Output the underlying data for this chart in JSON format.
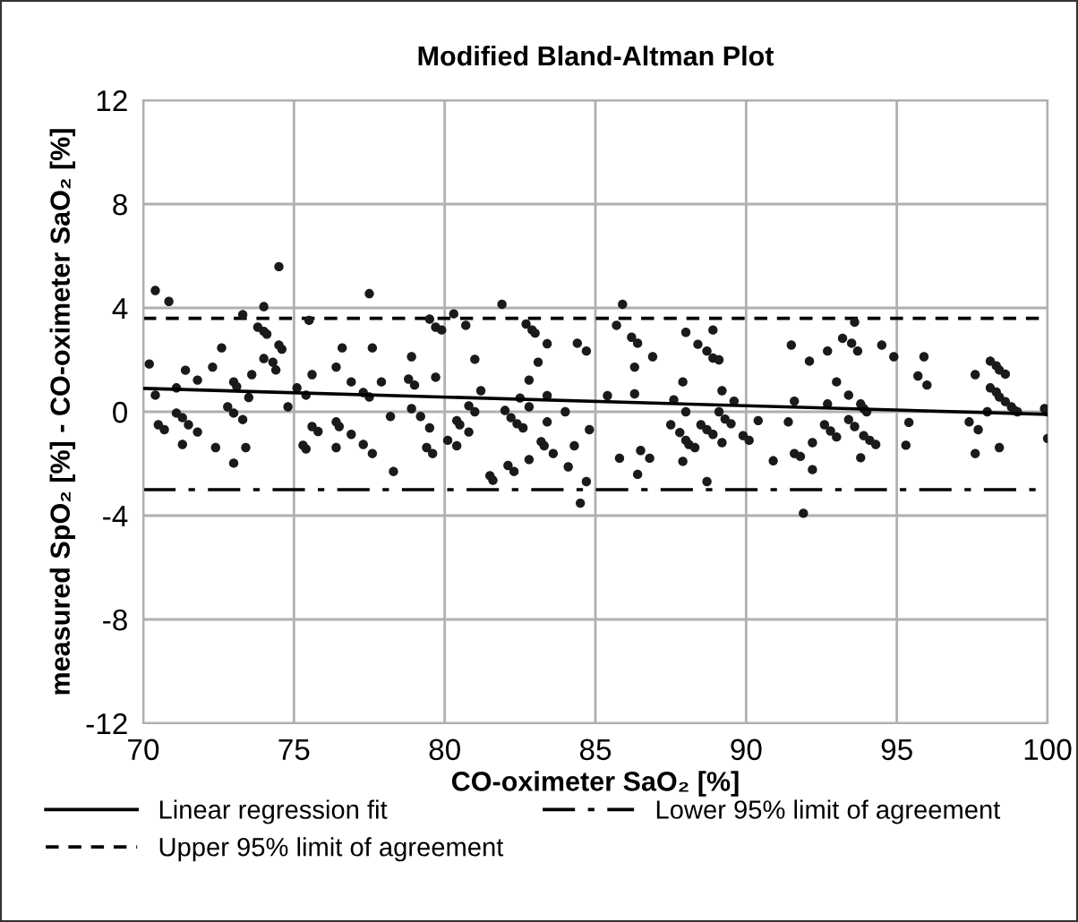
{
  "chart_data": {
    "type": "scatter",
    "title": "Modified Bland-Altman Plot",
    "xlabel": "CO-oximeter SaO₂ [%]",
    "ylabel": "measured SpO₂ [%] - CO-oximeter SaO₂ [%]",
    "xlim": [
      70,
      100
    ],
    "xticks": [
      70,
      75,
      80,
      85,
      90,
      95,
      100
    ],
    "ylim": [
      -12,
      12
    ],
    "yticks": [
      -12,
      -8,
      -4,
      0,
      4,
      8,
      12
    ],
    "grid": true,
    "legend": "bottom",
    "series": [
      {
        "marker": "circle",
        "color": "#1a1a1a",
        "x": [
          70.4,
          70.85,
          74.5,
          70.2,
          70.4,
          70.5,
          70.7,
          71.1,
          71.4,
          71.8,
          71.1,
          71.3,
          71.5,
          71.8,
          71.3,
          72.3,
          72.6,
          72.4,
          73.0,
          73.1,
          72.8,
          73.0,
          73.3,
          73.0,
          73.3,
          73.4,
          73.5,
          73.6,
          74.0,
          73.8,
          74.0,
          74.1,
          74.0,
          74.3,
          74.4,
          74.5,
          74.6,
          74.8,
          75.1,
          75.4,
          75.5,
          75.6,
          75.3,
          75.4,
          75.6,
          75.8,
          76.4,
          76.6,
          76.4,
          76.5,
          76.4,
          76.9,
          76.9,
          77.3,
          77.5,
          77.3,
          77.6,
          77.5,
          77.6,
          77.9,
          78.2,
          78.3,
          78.9,
          78.8,
          79.0,
          78.9,
          79.2,
          79.5,
          79.7,
          79.4,
          79.6,
          79.5,
          79.7,
          79.9,
          80.1,
          80.3,
          80.7,
          81.9,
          81.0,
          81.2,
          80.8,
          81.0,
          80.4,
          80.5,
          80.8,
          80.4,
          81.5,
          81.6,
          82.1,
          82.3,
          82.8,
          82.7,
          82.9,
          83.0,
          83.4,
          83.1,
          82.8,
          82.5,
          82.8,
          83.4,
          82.0,
          82.2,
          82.4,
          82.6,
          83.4,
          84.0,
          83.2,
          83.3,
          83.6,
          84.3,
          84.1,
          84.4,
          84.7,
          84.8,
          84.7,
          84.5,
          85.4,
          85.9,
          85.7,
          86.2,
          86.4,
          86.9,
          86.3,
          86.3,
          85.8,
          86.5,
          86.8,
          86.4,
          88.0,
          88.9,
          88.4,
          88.7,
          88.9,
          89.1,
          87.9,
          87.6,
          88.0,
          87.5,
          87.8,
          88.0,
          88.1,
          88.3,
          87.9,
          88.5,
          88.7,
          88.9,
          89.2,
          89.6,
          89.1,
          89.3,
          89.5,
          89.2,
          88.7,
          89.9,
          90.1,
          90.4,
          90.9,
          91.5,
          91.6,
          91.4,
          91.6,
          91.8,
          91.9,
          92.1,
          92.2,
          92.2,
          92.7,
          92.7,
          92.6,
          92.8,
          93.0,
          93.0,
          93.2,
          93.5,
          93.6,
          93.7,
          93.4,
          93.8,
          93.9,
          94.0,
          93.4,
          93.6,
          93.9,
          94.1,
          94.3,
          93.8,
          94.5,
          94.9,
          95.4,
          95.3,
          95.9,
          95.7,
          96.0,
          97.6,
          97.4,
          97.7,
          97.6,
          98.4,
          98.0,
          98.1,
          98.3,
          98.4,
          98.6,
          98.1,
          98.3,
          98.4,
          98.6,
          98.8,
          98.9,
          99.0,
          99.9,
          100.0,
          100.0
        ],
        "values": [
          4.67,
          4.25,
          5.59,
          1.84,
          0.64,
          -0.5,
          -0.69,
          0.92,
          1.6,
          1.22,
          -0.05,
          -0.23,
          -0.5,
          -0.78,
          -1.26,
          1.72,
          2.46,
          -1.38,
          1.15,
          0.97,
          0.19,
          -0.05,
          -0.3,
          -1.98,
          3.74,
          -1.38,
          0.55,
          1.43,
          4.05,
          3.26,
          3.1,
          2.99,
          2.05,
          1.91,
          1.61,
          2.57,
          2.41,
          0.19,
          0.92,
          0.64,
          3.52,
          1.43,
          -1.29,
          -1.43,
          -0.57,
          -0.76,
          1.72,
          2.46,
          -0.39,
          -0.57,
          -1.38,
          -0.87,
          1.15,
          0.74,
          0.57,
          -1.26,
          -1.61,
          4.55,
          2.46,
          1.15,
          -0.18,
          -2.3,
          2.12,
          1.26,
          1.03,
          0.12,
          -0.18,
          -0.62,
          1.33,
          -1.38,
          -1.61,
          3.57,
          3.26,
          3.15,
          -1.1,
          3.77,
          3.33,
          4.14,
          2.02,
          0.81,
          0.23,
          0.0,
          -0.34,
          -0.5,
          -0.78,
          -1.31,
          -2.46,
          -2.64,
          -2.07,
          -2.3,
          -1.84,
          3.38,
          3.15,
          3.03,
          2.62,
          1.91,
          1.22,
          0.53,
          0.19,
          0.62,
          0.05,
          -0.23,
          -0.46,
          -0.62,
          -0.39,
          0.0,
          -1.15,
          -1.31,
          -1.61,
          -1.31,
          -2.12,
          2.64,
          2.34,
          -0.69,
          -2.69,
          -3.52,
          0.62,
          4.14,
          3.33,
          2.87,
          2.64,
          2.12,
          1.72,
          0.69,
          -1.79,
          -1.49,
          -1.79,
          -2.41,
          3.06,
          3.15,
          2.6,
          2.34,
          2.07,
          2.0,
          1.15,
          0.46,
          0.0,
          -0.5,
          -0.8,
          -1.1,
          -1.26,
          -1.38,
          -1.91,
          -0.5,
          -0.69,
          -0.87,
          0.81,
          0.41,
          0.0,
          -0.28,
          -0.46,
          -1.19,
          -2.69,
          -0.92,
          -1.1,
          -0.34,
          -1.89,
          2.57,
          0.41,
          -0.39,
          -1.61,
          -1.72,
          -3.91,
          1.95,
          -1.19,
          -2.23,
          2.34,
          0.3,
          -0.5,
          -0.74,
          -0.97,
          1.15,
          2.83,
          2.64,
          3.45,
          2.34,
          0.64,
          0.3,
          0.12,
          0.0,
          -0.3,
          -0.57,
          -0.92,
          -1.1,
          -1.26,
          -1.77,
          2.57,
          2.12,
          -0.41,
          -1.29,
          2.12,
          1.38,
          1.03,
          1.43,
          -0.39,
          -0.69,
          -1.61,
          -1.38,
          0.0,
          1.95,
          1.77,
          1.61,
          1.45,
          0.92,
          0.76,
          0.57,
          0.39,
          0.19,
          0.05,
          0.0,
          0.12,
          0.0,
          -1.03
        ]
      },
      {
        "type": "line",
        "name": "Linear regression fit",
        "color": "#000000",
        "line_style": "solid",
        "x": [
          70,
          100
        ],
        "values": [
          0.9,
          -0.1
        ]
      }
    ],
    "ref_lines": [
      {
        "axis": "y",
        "value": 3.6,
        "label": "Upper 95% limit of agreement",
        "color": "#000000",
        "line_style": "dashed"
      },
      {
        "axis": "y",
        "value": -3.0,
        "label": "Lower 95% limit of agreement",
        "color": "#000000",
        "line_style": "dashdot"
      }
    ]
  }
}
